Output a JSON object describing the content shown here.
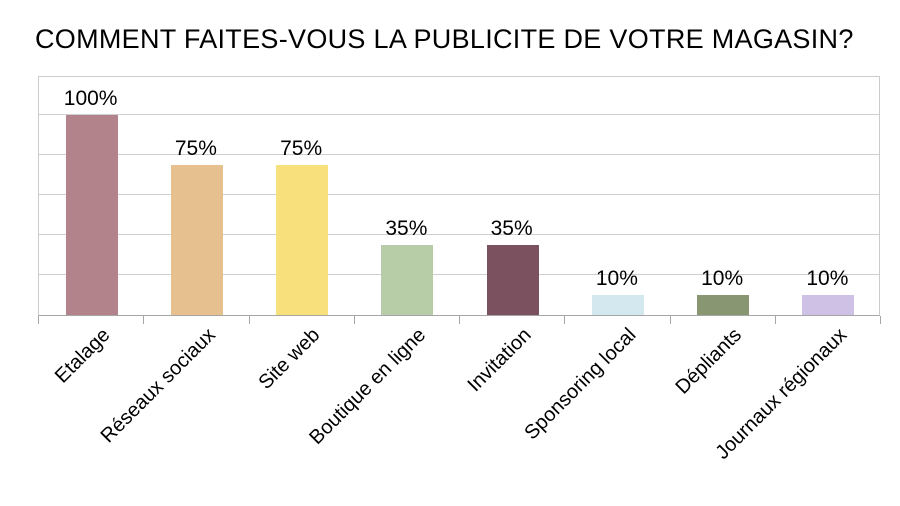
{
  "title": "COMMENT FAITES-VOUS LA PUBLICITE DE VOTRE MAGASIN?",
  "chart_data": {
    "type": "bar",
    "title": "COMMENT FAITES-VOUS LA PUBLICITE DE VOTRE MAGASIN?",
    "categories": [
      "Etalage",
      "Réseaux sociaux",
      "Site web",
      "Boutique en ligne",
      "Invitation",
      "Sponsoring local",
      "Dépliants",
      "Journaux régionaux"
    ],
    "values": [
      100,
      75,
      75,
      35,
      35,
      10,
      10,
      10
    ],
    "value_labels": [
      "100%",
      "75%",
      "75%",
      "35%",
      "35%",
      "10%",
      "10%",
      "10%"
    ],
    "bar_colors": [
      "#b2838a",
      "#e6c08f",
      "#f8e17d",
      "#b7cda7",
      "#7b505f",
      "#d4e8ef",
      "#889672",
      "#cec1e5"
    ],
    "xlabel": "",
    "ylabel": "",
    "ylim": [
      0,
      120
    ],
    "gridline_step": 20,
    "grid": true,
    "legend": false,
    "y_tick_labels_visible": false,
    "x_label_rotation_deg": 45
  },
  "colors": {
    "background": "#ffffff",
    "gridline": "#cfcfcf",
    "plot_border": "#cccccc",
    "axis_line": "#a6a6a6",
    "text": "#000000"
  }
}
